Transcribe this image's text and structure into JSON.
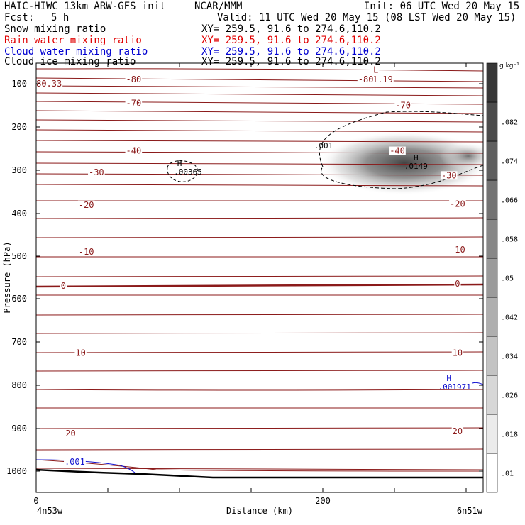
{
  "header": {
    "model": "HAIC-HIWC 13km ARW-GFS init",
    "org": "NCAR/MMM",
    "init": "Init: 06 UTC Wed 20 May 15",
    "fcst_label": "Fcst:",
    "fcst_value": "5 h",
    "valid": "Valid: 11 UTC Wed 20 May 15 (08 LST Wed 20 May 15)",
    "fields": [
      {
        "name": "Snow mixing ratio",
        "xy": "XY= 259.5, 91.6 to 274.6,110.2",
        "color": "#000000"
      },
      {
        "name": "Rain water mixing ratio",
        "xy": "XY= 259.5, 91.6 to 274.6,110.2",
        "color": "#e00000"
      },
      {
        "name": "Cloud water mixing ratio",
        "xy": "XY= 259.5, 91.6 to 274.6,110.2",
        "color": "#0000d0"
      },
      {
        "name": "Cloud ice mixing ratio",
        "xy": "XY= 259.5, 91.6 to 274.6,110.2",
        "color": "#000000"
      }
    ]
  },
  "chart_data": {
    "type": "contour-cross-section",
    "xlabel": "Distance (km)",
    "ylabel": "Pressure (hPa)",
    "xlim": [
      0,
      310
    ],
    "ylim": [
      1050,
      40
    ],
    "x_ticks": [
      0,
      200
    ],
    "y_ticks": [
      100,
      200,
      300,
      400,
      500,
      600,
      700,
      800,
      900,
      1000
    ],
    "x_endpoints": {
      "left": "4n53w",
      "right": "6n51w"
    },
    "colorbar": {
      "unit": "g kg⁻¹",
      "levels": [
        ".01",
        ".018",
        ".026",
        ".034",
        ".042",
        ".05",
        ".058",
        ".066",
        ".074",
        ".082"
      ]
    },
    "snow_max": {
      "label": "H",
      "value": ".0149",
      "x": 265,
      "p": 290
    },
    "snow_outer_contour": {
      "label": ".001"
    },
    "ice_max_small": {
      "label": "H",
      "value": ".00365",
      "x": 100,
      "p": 310
    },
    "cloud_water_labels": [
      {
        "label": ".001",
        "x": 22,
        "p": 985
      },
      {
        "label": "H",
        "value": ".001971",
        "x": 283,
        "p": 810
      }
    ],
    "temperature_labels": [
      {
        "label": "80.33",
        "x": 9,
        "p": 100
      },
      {
        "label": "L",
        "x": 237,
        "p": 68
      },
      {
        "label": "81.19",
        "x": 240,
        "p": 90
      },
      {
        "label": "-80",
        "x": 68,
        "p": 90
      },
      {
        "label": "-80",
        "x": 230,
        "p": 90
      },
      {
        "label": "-70",
        "x": 68,
        "p": 145
      },
      {
        "label": "-70",
        "x": 256,
        "p": 150
      },
      {
        "label": "-40",
        "x": 68,
        "p": 255
      },
      {
        "label": "-40",
        "x": 252,
        "p": 255
      },
      {
        "label": "-30",
        "x": 42,
        "p": 305
      },
      {
        "label": "-30",
        "x": 288,
        "p": 312
      },
      {
        "label": "-20",
        "x": 35,
        "p": 380
      },
      {
        "label": "-20",
        "x": 294,
        "p": 378
      },
      {
        "label": "-10",
        "x": 35,
        "p": 490
      },
      {
        "label": "-10",
        "x": 294,
        "p": 485
      },
      {
        "label": "0",
        "x": 19,
        "p": 570
      },
      {
        "label": "0",
        "x": 294,
        "p": 565
      },
      {
        "label": "10",
        "x": 31,
        "p": 725
      },
      {
        "label": "10",
        "x": 294,
        "p": 725
      },
      {
        "label": "20",
        "x": 24,
        "p": 912
      },
      {
        "label": "20",
        "x": 294,
        "p": 907
      }
    ]
  }
}
